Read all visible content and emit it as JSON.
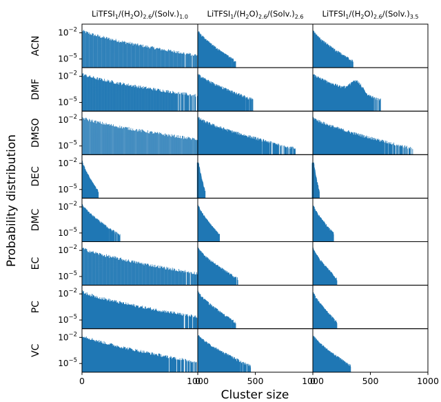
{
  "chart_data": {
    "type": "bar",
    "title": "",
    "xlabel": "Cluster size",
    "ylabel": "Probability distribution",
    "yscale": "log",
    "ylim": [
      1e-06,
      0.1
    ],
    "ytick_labels": [
      {
        "base": "10",
        "exp": "−2",
        "value": 0.01
      },
      {
        "base": "10",
        "exp": "−5",
        "value": 1e-05
      }
    ],
    "bar_color": "#1f77b4",
    "grid": false,
    "columns": [
      {
        "main": "LiTFSI",
        "s1": "1",
        "p2": "/(H",
        "s2": "2",
        "p3": "O)",
        "s3": "2.6",
        "p4": "/(Solv.)",
        "s4": "1.0",
        "xlim": [
          0,
          1000
        ],
        "xticks": [
          {
            "v": 0,
            "l": "0"
          },
          {
            "v": 1000,
            "l": "1000"
          }
        ]
      },
      {
        "main": "LiTFSI",
        "s1": "1",
        "p2": "/(H",
        "s2": "2",
        "p3": "O)",
        "s3": "2.6",
        "p4": "/(Solv.)",
        "s4": "2.6",
        "xlim": [
          0,
          1000
        ],
        "xticks": [
          {
            "v": 0,
            "l": "0"
          },
          {
            "v": 500,
            "l": "500"
          },
          {
            "v": 1000,
            "l": "1000"
          }
        ]
      },
      {
        "main": "LiTFSI",
        "s1": "1",
        "p2": "/(H",
        "s2": "2",
        "p3": "O)",
        "s3": "2.6",
        "p4": "/(Solv.)",
        "s4": "3.5",
        "xlim": [
          0,
          1000
        ],
        "xticks": [
          {
            "v": 0,
            "l": "0"
          },
          {
            "v": 500,
            "l": "500"
          },
          {
            "v": 1000,
            "l": "1000"
          }
        ]
      }
    ],
    "rows": [
      "ACN",
      "DMF",
      "DMSO",
      "DEC",
      "DMC",
      "EC",
      "PC",
      "VC"
    ],
    "max_cluster_size": [
      [
        1330,
        330,
        350
      ],
      [
        1250,
        480,
        590
      ],
      [
        1460,
        850,
        870
      ],
      [
        140,
        60,
        50
      ],
      [
        330,
        190,
        180
      ],
      [
        1300,
        350,
        210
      ],
      [
        1200,
        330,
        210
      ],
      [
        1200,
        460,
        330
      ]
    ],
    "p_at_max": [
      [
        5e-06,
        5e-06,
        5e-06
      ],
      [
        2e-05,
        2e-05,
        2e-05
      ],
      [
        8e-06,
        5e-06,
        5e-06
      ],
      [
        5e-06,
        5e-06,
        5e-06
      ],
      [
        5e-06,
        5e-06,
        8e-06
      ],
      [
        5e-06,
        5e-06,
        5e-06
      ],
      [
        8e-06,
        5e-06,
        5e-06
      ],
      [
        5e-06,
        5e-06,
        5e-06
      ]
    ],
    "bump_cluster_size": [
      [
        null,
        null,
        null
      ],
      [
        null,
        null,
        380
      ],
      [
        null,
        null,
        null
      ],
      [
        null,
        null,
        null
      ],
      [
        null,
        null,
        null
      ],
      [
        null,
        null,
        null
      ],
      [
        null,
        null,
        null
      ],
      [
        null,
        null,
        null
      ]
    ]
  }
}
